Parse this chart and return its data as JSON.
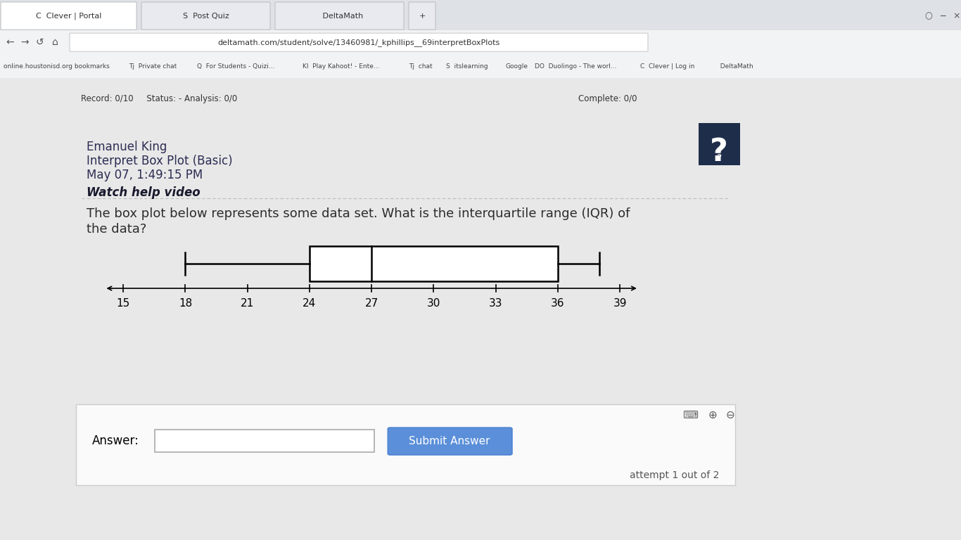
{
  "subtitle_lines": [
    "Emanuel King",
    "Interpret Box Plot (Basic)",
    "May 07, 1:49:15 PM"
  ],
  "watch_help": "Watch help video",
  "answer_label": "Answer:",
  "submit_label": "Submit Answer",
  "attempt_text": "attempt 1 out of 2",
  "axis_ticks": [
    15,
    18,
    21,
    24,
    27,
    30,
    33,
    36,
    39
  ],
  "axis_min": 13.5,
  "axis_max": 41,
  "whisker_low": 18,
  "q1": 24,
  "median": 27,
  "q3": 36,
  "whisker_high": 38,
  "box_color": "white",
  "box_edge_color": "black",
  "line_color": "black",
  "page_bg": "#e8e8e8",
  "browser_bar_bg": "#3c3c3c",
  "card_bg": "white",
  "text_color": "#2c2c2c",
  "header_text_color": "#2c2c54",
  "watch_help_color": "#1a1a2e",
  "question_color": "#2c2c2c",
  "dashed_line_color": "#bbbbbb",
  "answer_box_border": "#cccccc",
  "submit_btn_color": "#5b8fd9",
  "submit_btn_border": "#4a7fd4",
  "attempt_color": "#555555",
  "qmark_bg": "#1e2d4a",
  "tab_bg": "#f1f3f4",
  "active_tab_bg": "white",
  "url_bar_bg": "white"
}
